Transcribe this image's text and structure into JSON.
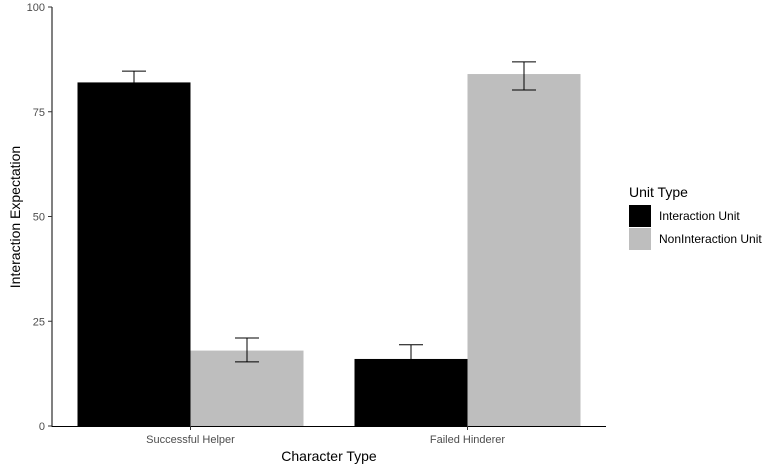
{
  "chart_data": {
    "type": "bar",
    "categories": [
      "Successful Helper",
      "Failed Hinderer"
    ],
    "series": [
      {
        "name": "Interaction Unit",
        "color": "#000000",
        "values": [
          82,
          16
        ],
        "error_low": [
          80.8,
          12.8
        ],
        "error_high": [
          84.7,
          19.4
        ]
      },
      {
        "name": "NonInteraction Unit",
        "color": "#bebebe",
        "values": [
          18,
          84
        ],
        "error_low": [
          15.3,
          80.2
        ],
        "error_high": [
          21,
          86.9
        ]
      }
    ],
    "xlabel": "Character Type",
    "ylabel": "Interaction Expectation",
    "ylim": [
      0,
      100
    ],
    "yticks": [
      0,
      25,
      50,
      75,
      100
    ],
    "legend_title": "Unit Type",
    "legend_position": "right",
    "grid": false
  }
}
